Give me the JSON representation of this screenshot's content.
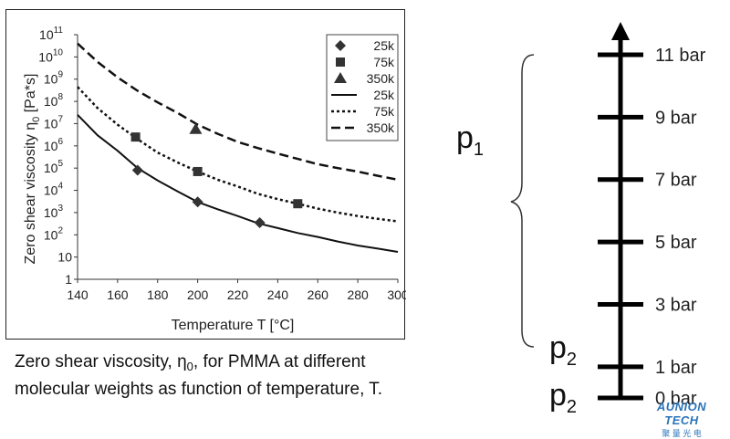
{
  "chart_data": {
    "type": "line",
    "title": "",
    "xlabel": "Temperature T [°C]",
    "ylabel_main": "Zero shear viscosity η",
    "ylabel_sub": "0",
    "ylabel_unit": " [Pa*s]",
    "xlim": [
      140,
      300
    ],
    "ylim_log10": [
      0,
      11
    ],
    "yscale": "log",
    "grid": false,
    "legend_position": "top-right",
    "x_ticks": [
      "140",
      "160",
      "180",
      "200",
      "220",
      "240",
      "260",
      "280",
      "300"
    ],
    "y_ticks": [
      {
        "base": "1",
        "exp": ""
      },
      {
        "base": "10",
        "exp": ""
      },
      {
        "base": "10",
        "exp": "2"
      },
      {
        "base": "10",
        "exp": "3"
      },
      {
        "base": "10",
        "exp": "4"
      },
      {
        "base": "10",
        "exp": "5"
      },
      {
        "base": "10",
        "exp": "6"
      },
      {
        "base": "10",
        "exp": "7"
      },
      {
        "base": "10",
        "exp": "8"
      },
      {
        "base": "10",
        "exp": "9"
      },
      {
        "base": "10",
        "exp": "10"
      },
      {
        "base": "10",
        "exp": "11"
      }
    ],
    "series": [
      {
        "name": "25k",
        "kind": "line",
        "dash": "solid",
        "color": "#111111",
        "x": [
          140,
          150,
          160,
          170,
          180,
          190,
          200,
          210,
          220,
          230,
          240,
          250,
          260,
          270,
          280,
          290,
          300
        ],
        "y": [
          25000000,
          3000000,
          600000,
          100000,
          28000,
          9000,
          3000,
          1400,
          700,
          330,
          200,
          120,
          80,
          50,
          33,
          24,
          17
        ]
      },
      {
        "name": "75k",
        "kind": "line",
        "dash": "dotted",
        "color": "#111111",
        "x": [
          140,
          150,
          160,
          170,
          180,
          190,
          200,
          210,
          220,
          230,
          240,
          250,
          260,
          270,
          280,
          290,
          300
        ],
        "y": [
          450000000,
          50000000,
          9000000,
          2000000,
          500000,
          180000,
          70000,
          30000,
          15000,
          7000,
          4000,
          2500,
          1500,
          1000,
          700,
          520,
          400
        ]
      },
      {
        "name": "350k",
        "kind": "line",
        "dash": "dashed",
        "color": "#111111",
        "x": [
          140,
          150,
          160,
          170,
          180,
          190,
          200,
          210,
          220,
          230,
          240,
          250,
          260,
          270,
          280,
          290,
          300
        ],
        "y": [
          40000000000,
          6000000000,
          1200000000,
          300000000,
          90000000,
          30000000,
          9000000,
          3500000,
          1500000,
          800000,
          450000,
          260000,
          150000,
          100000,
          70000,
          45000,
          30000
        ]
      },
      {
        "name": "25k",
        "kind": "marker",
        "marker": "diamond",
        "color": "#333333",
        "x": [
          170,
          200,
          231
        ],
        "y": [
          80000,
          3000,
          350
        ]
      },
      {
        "name": "75k",
        "kind": "marker",
        "marker": "square",
        "color": "#333333",
        "x": [
          169,
          200,
          250
        ],
        "y": [
          2500000,
          70000,
          2500
        ]
      },
      {
        "name": "350k",
        "kind": "marker",
        "marker": "triangle",
        "color": "#333333",
        "x": [
          199
        ],
        "y": [
          5500000
        ]
      }
    ]
  },
  "caption": {
    "part1": "Zero shear viscosity, η",
    "sub": "0",
    "part2": ", for PMMA at different molecular weights as function of temperature, T."
  },
  "pressure_scale": {
    "ticks": [
      {
        "label": "11 bar",
        "value": 11
      },
      {
        "label": "9 bar",
        "value": 9
      },
      {
        "label": "7 bar",
        "value": 7
      },
      {
        "label": "5 bar",
        "value": 5
      },
      {
        "label": "3 bar",
        "value": 3
      },
      {
        "label": "1 bar",
        "value": 1
      },
      {
        "label": "0 bar",
        "value": 0
      }
    ],
    "p1": {
      "main": "p",
      "sub": "1"
    },
    "p2_upper": {
      "main": "p",
      "sub": "2"
    },
    "p2_lower": {
      "main": "p",
      "sub": "2"
    }
  },
  "watermark": {
    "line1": "AUNION TECH",
    "line2": "聚 量 光 电"
  }
}
